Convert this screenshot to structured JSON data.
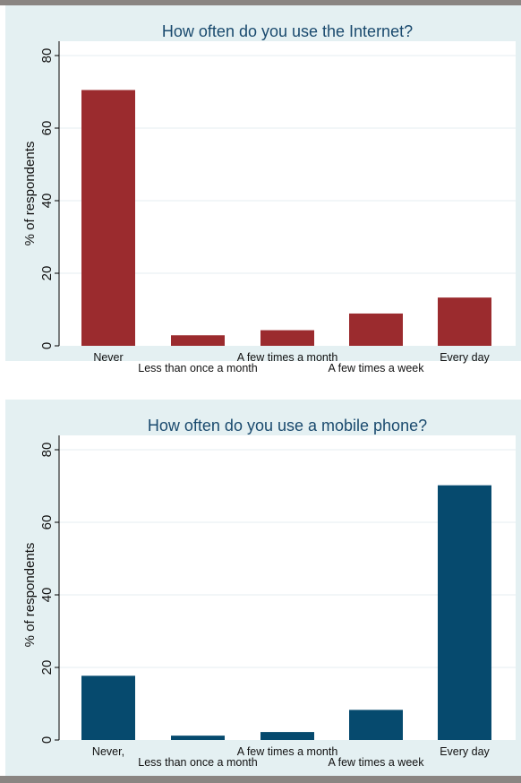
{
  "charts": {
    "internet": {
      "title": "How often do you use the Internet?",
      "ylabel": "% of respondents",
      "color": "#9b2b2e"
    },
    "mobile": {
      "title": "How often do you use a mobile phone?",
      "ylabel": "% of respondents",
      "color": "#064a6e"
    }
  },
  "chart_data": [
    {
      "type": "bar",
      "title": "How often do you use the Internet?",
      "ylabel": "% of respondents",
      "xlabel": "",
      "ylim": [
        0,
        80
      ],
      "yticks": [
        0,
        20,
        40,
        60,
        80
      ],
      "categories": [
        "Never",
        "Less than once a month",
        "A few times a month",
        "A few times a week",
        "Every day"
      ],
      "values": [
        70.5,
        2.9,
        4.3,
        8.9,
        13.3
      ],
      "color": "#9b2b2e",
      "grid": true
    },
    {
      "type": "bar",
      "title": "How often do you use a mobile phone?",
      "ylabel": "% of respondents",
      "xlabel": "",
      "ylim": [
        0,
        80
      ],
      "yticks": [
        0,
        20,
        40,
        60,
        80
      ],
      "categories": [
        "Never,",
        "Less than once a month",
        "A few times a month",
        "A few times a week",
        "Every day"
      ],
      "values": [
        17.7,
        1.2,
        2.2,
        8.3,
        70.2
      ],
      "color": "#064a6e",
      "grid": true
    }
  ]
}
